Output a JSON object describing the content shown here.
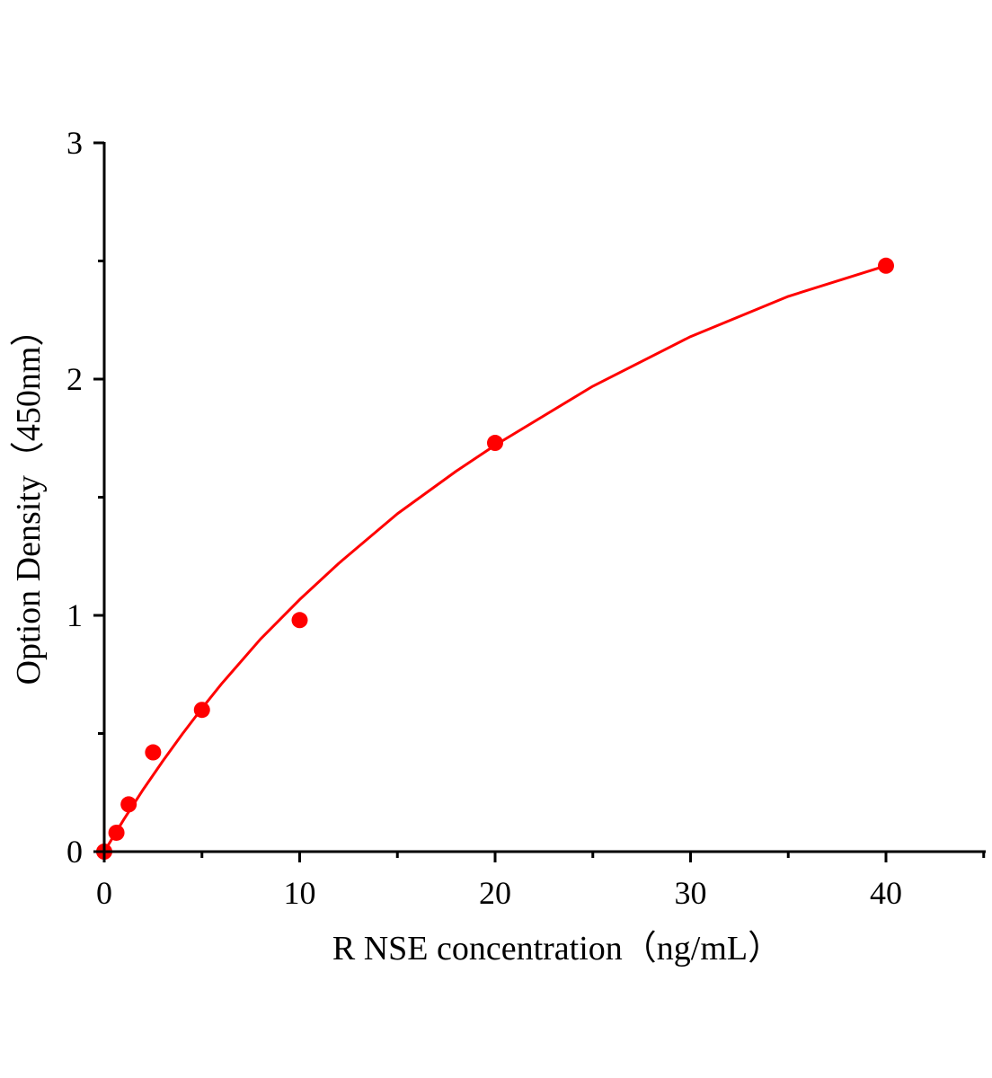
{
  "chart_data": {
    "type": "scatter",
    "title": "",
    "xlabel": "R NSE  concentration（ng/mL）",
    "ylabel": "Option Density（450nm）",
    "xlim": [
      0,
      45
    ],
    "ylim": [
      0,
      3
    ],
    "x_ticks": [
      "0",
      "10",
      "20",
      "30",
      "40"
    ],
    "y_ticks": [
      "0",
      "1",
      "2",
      "3"
    ],
    "grid": false,
    "legend": "none",
    "color": "#ff0000",
    "series": [
      {
        "x": [
          0,
          0.625,
          1.25,
          2.5,
          5,
          10,
          20,
          40
        ],
        "y": [
          0,
          0.08,
          0.2,
          0.42,
          0.6,
          0.98,
          1.73,
          2.48
        ]
      }
    ],
    "fit_curve": {
      "x": [
        0,
        1,
        2,
        3,
        4,
        5,
        6,
        8,
        10,
        12,
        15,
        18,
        20,
        25,
        30,
        35,
        40
      ],
      "y": [
        0,
        0.136,
        0.264,
        0.384,
        0.498,
        0.607,
        0.71,
        0.9,
        1.067,
        1.22,
        1.43,
        1.61,
        1.72,
        1.97,
        2.18,
        2.35,
        2.48
      ]
    }
  }
}
